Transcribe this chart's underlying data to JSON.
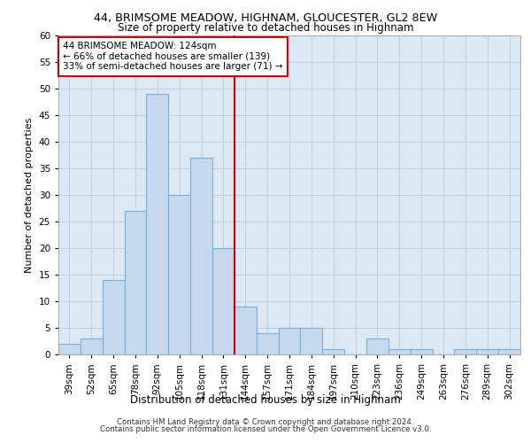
{
  "title1": "44, BRIMSOME MEADOW, HIGHNAM, GLOUCESTER, GL2 8EW",
  "title2": "Size of property relative to detached houses in Highnam",
  "xlabel": "Distribution of detached houses by size in Highnam",
  "ylabel": "Number of detached properties",
  "bar_labels": [
    "39sqm",
    "52sqm",
    "65sqm",
    "78sqm",
    "92sqm",
    "105sqm",
    "118sqm",
    "131sqm",
    "144sqm",
    "157sqm",
    "171sqm",
    "184sqm",
    "197sqm",
    "210sqm",
    "223sqm",
    "236sqm",
    "249sqm",
    "263sqm",
    "276sqm",
    "289sqm",
    "302sqm"
  ],
  "bar_values": [
    2,
    3,
    14,
    27,
    49,
    30,
    37,
    20,
    9,
    4,
    5,
    5,
    1,
    0,
    3,
    1,
    1,
    0,
    1,
    1,
    1
  ],
  "bar_color": "#c5d8ee",
  "bar_edgecolor": "#7bafd4",
  "vline_x_index": 7,
  "vline_color": "#cc0000",
  "annotation_text": "44 BRIMSOME MEADOW: 124sqm\n← 66% of detached houses are smaller (139)\n33% of semi-detached houses are larger (71) →",
  "annotation_box_color": "#ffffff",
  "annotation_box_edgecolor": "#cc0000",
  "ylim": [
    0,
    60
  ],
  "yticks": [
    0,
    5,
    10,
    15,
    20,
    25,
    30,
    35,
    40,
    45,
    50,
    55,
    60
  ],
  "background_color": "#dce9f5",
  "grid_color": "#c0cfe0",
  "footer1": "Contains HM Land Registry data © Crown copyright and database right 2024.",
  "footer2": "Contains public sector information licensed under the Open Government Licence v3.0."
}
